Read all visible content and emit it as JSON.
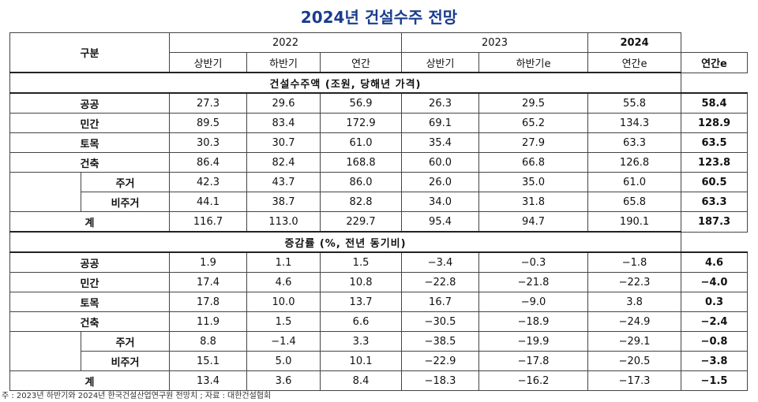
{
  "title": "2024년 건설수주 전망",
  "header": {
    "category": "구분",
    "years": [
      "2022",
      "2023",
      "2024"
    ],
    "sub": [
      "상반기",
      "하반기",
      "연간",
      "상반기",
      "하반기e",
      "연간e",
      "연간e"
    ]
  },
  "section1": {
    "title": "건설수주액 (조원, 당해년 가격)",
    "rows": [
      {
        "label": "공공",
        "values": [
          "27.3",
          "29.6",
          "56.9",
          "26.3",
          "29.5",
          "55.8",
          "58.4"
        ]
      },
      {
        "label": "민간",
        "values": [
          "89.5",
          "83.4",
          "172.9",
          "69.1",
          "65.2",
          "134.3",
          "128.9"
        ]
      },
      {
        "label": "토목",
        "values": [
          "30.3",
          "30.7",
          "61.0",
          "35.4",
          "27.9",
          "63.3",
          "63.5"
        ]
      },
      {
        "label": "건축",
        "values": [
          "86.4",
          "82.4",
          "168.8",
          "60.0",
          "66.8",
          "126.8",
          "123.8"
        ]
      },
      {
        "label": "주거",
        "values": [
          "42.3",
          "43.7",
          "86.0",
          "26.0",
          "35.0",
          "61.0",
          "60.5"
        ]
      },
      {
        "label": "비주거",
        "values": [
          "44.1",
          "38.7",
          "82.8",
          "34.0",
          "31.8",
          "65.8",
          "63.3"
        ]
      },
      {
        "label": "계",
        "values": [
          "116.7",
          "113.0",
          "229.7",
          "95.4",
          "94.7",
          "190.1",
          "187.3"
        ]
      }
    ]
  },
  "section2": {
    "title": "증감률 (%, 전년 동기비)",
    "rows": [
      {
        "label": "공공",
        "values": [
          "1.9",
          "1.1",
          "1.5",
          "−3.4",
          "−0.3",
          "−1.8",
          "4.6"
        ]
      },
      {
        "label": "민간",
        "values": [
          "17.4",
          "4.6",
          "10.8",
          "−22.8",
          "−21.8",
          "−22.3",
          "−4.0"
        ]
      },
      {
        "label": "토목",
        "values": [
          "17.8",
          "10.0",
          "13.7",
          "16.7",
          "−9.0",
          "3.8",
          "0.3"
        ]
      },
      {
        "label": "건축",
        "values": [
          "11.9",
          "1.5",
          "6.6",
          "−30.5",
          "−18.9",
          "−24.9",
          "−2.4"
        ]
      },
      {
        "label": "주거",
        "values": [
          "8.8",
          "−1.4",
          "3.3",
          "−38.5",
          "−19.9",
          "−29.1",
          "−0.8"
        ]
      },
      {
        "label": "비주거",
        "values": [
          "15.1",
          "5.0",
          "10.1",
          "−22.9",
          "−17.8",
          "−20.5",
          "−3.8"
        ]
      },
      {
        "label": "계",
        "values": [
          "13.4",
          "3.6",
          "8.4",
          "−18.3",
          "−16.2",
          "−17.3",
          "−1.5"
        ]
      }
    ]
  },
  "note": "주 : 2023년 하반기와 2024년 한국건설산업연구원 전망치 ; 자료 : 대한건설협회"
}
